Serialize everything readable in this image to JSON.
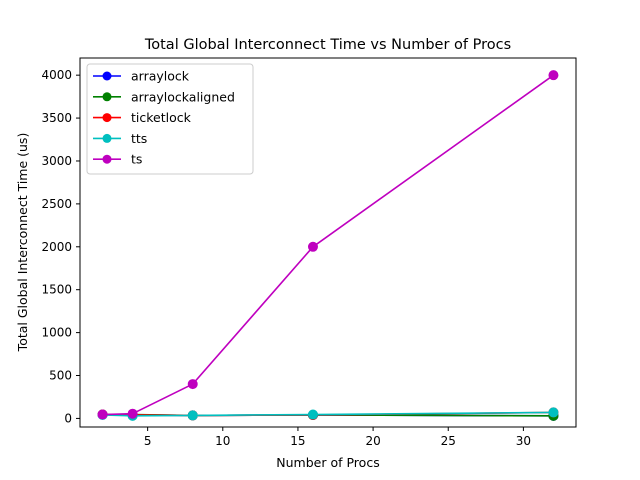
{
  "chart_data": {
    "type": "line",
    "title": "Total Global Interconnect Time vs Number of Procs",
    "xlabel": "Number of Procs",
    "ylabel": "Total Global Interconnect Time (us)",
    "xlim": [
      0.5,
      33.5
    ],
    "ylim": [
      -100,
      4200
    ],
    "xticks": [
      5,
      10,
      15,
      20,
      25,
      30
    ],
    "yticks": [
      0,
      500,
      1000,
      1500,
      2000,
      2500,
      3000,
      3500,
      4000
    ],
    "grid": false,
    "legend_position": "upper-left",
    "x": [
      2,
      4,
      8,
      16,
      32
    ],
    "series": [
      {
        "name": "arraylock",
        "color": "#0000ff",
        "values": [
          45,
          40,
          35,
          40,
          30
        ]
      },
      {
        "name": "arraylockaligned",
        "color": "#008000",
        "values": [
          45,
          45,
          35,
          40,
          30
        ]
      },
      {
        "name": "ticketlock",
        "color": "#ff0000",
        "values": [
          45,
          40,
          35,
          40,
          70
        ]
      },
      {
        "name": "tts",
        "color": "#00bfbf",
        "values": [
          40,
          30,
          35,
          45,
          70
        ]
      },
      {
        "name": "ts",
        "color": "#bf00bf",
        "values": [
          45,
          55,
          400,
          2000,
          4000
        ]
      }
    ]
  }
}
